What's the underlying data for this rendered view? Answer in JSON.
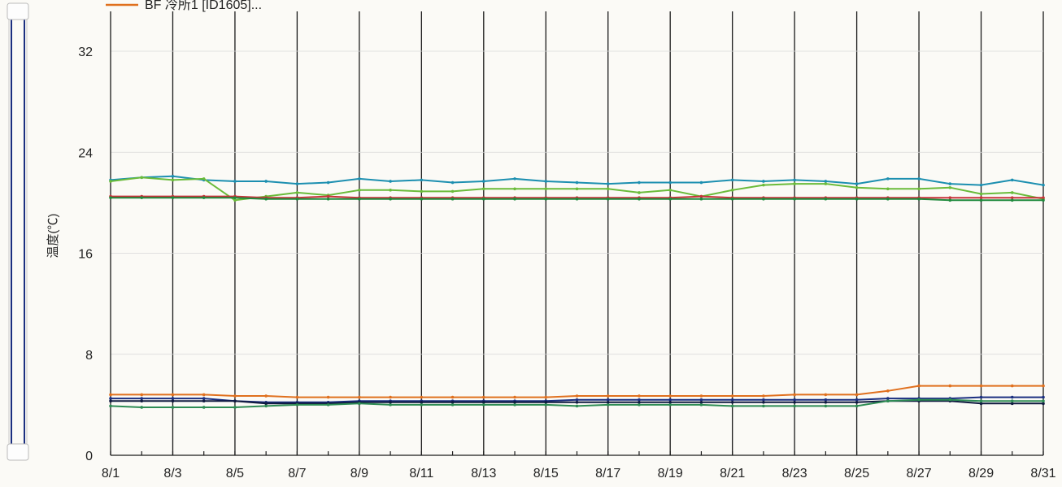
{
  "chart_data": {
    "type": "line",
    "title": "",
    "xlabel": "",
    "ylabel": "温度(℃)",
    "ylim": [
      0,
      32
    ],
    "yticks": [
      0,
      8,
      16,
      24,
      32
    ],
    "grid": "vertical",
    "legend_position": "top-left",
    "legend_visible_entries": [
      "BF 冷所1 [ID1605]..."
    ],
    "x": [
      "8/1",
      "8/2",
      "8/3",
      "8/4",
      "8/5",
      "8/6",
      "8/7",
      "8/8",
      "8/9",
      "8/10",
      "8/11",
      "8/12",
      "8/13",
      "8/14",
      "8/15",
      "8/16",
      "8/17",
      "8/18",
      "8/19",
      "8/20",
      "8/21",
      "8/22",
      "8/23",
      "8/24",
      "8/25",
      "8/26",
      "8/27",
      "8/28",
      "8/29",
      "8/30",
      "8/31"
    ],
    "xtick_labels": [
      "8/1",
      "8/3",
      "8/5",
      "8/7",
      "8/9",
      "8/11",
      "8/13",
      "8/15",
      "8/17",
      "8/19",
      "8/21",
      "8/23",
      "8/25",
      "8/27",
      "8/29",
      "8/31"
    ],
    "series": [
      {
        "name": "BF 冷所1 [ID1605]...",
        "color": "#e0701e",
        "values": [
          4.8,
          4.8,
          4.8,
          4.8,
          4.7,
          4.7,
          4.6,
          4.6,
          4.6,
          4.6,
          4.6,
          4.6,
          4.6,
          4.6,
          4.6,
          4.7,
          4.7,
          4.7,
          4.7,
          4.7,
          4.7,
          4.7,
          4.8,
          4.8,
          4.8,
          5.1,
          5.5,
          5.5,
          5.5,
          5.5,
          5.5
        ]
      },
      {
        "color": "#1c8fb0",
        "values": [
          21.8,
          22.0,
          22.1,
          21.8,
          21.7,
          21.7,
          21.5,
          21.6,
          21.9,
          21.7,
          21.8,
          21.6,
          21.7,
          21.9,
          21.7,
          21.6,
          21.5,
          21.6,
          21.6,
          21.6,
          21.8,
          21.7,
          21.8,
          21.7,
          21.5,
          21.9,
          21.9,
          21.5,
          21.4,
          21.8,
          21.4
        ]
      },
      {
        "color": "#6abb3a",
        "values": [
          21.7,
          22.0,
          21.8,
          21.9,
          20.2,
          20.5,
          20.8,
          20.6,
          21.0,
          21.0,
          20.9,
          20.9,
          21.1,
          21.1,
          21.1,
          21.1,
          21.1,
          20.8,
          21.0,
          20.5,
          21.0,
          21.4,
          21.5,
          21.5,
          21.2,
          21.1,
          21.1,
          21.2,
          20.7,
          20.8,
          20.3
        ]
      },
      {
        "color": "#c8333a",
        "values": [
          20.5,
          20.5,
          20.5,
          20.5,
          20.5,
          20.4,
          20.4,
          20.5,
          20.4,
          20.4,
          20.4,
          20.4,
          20.4,
          20.4,
          20.4,
          20.4,
          20.4,
          20.4,
          20.4,
          20.5,
          20.4,
          20.4,
          20.4,
          20.4,
          20.4,
          20.4,
          20.4,
          20.4,
          20.4,
          20.4,
          20.4
        ]
      },
      {
        "color": "#1e8a3c",
        "values": [
          20.4,
          20.4,
          20.4,
          20.4,
          20.4,
          20.3,
          20.3,
          20.3,
          20.3,
          20.3,
          20.3,
          20.3,
          20.3,
          20.3,
          20.3,
          20.3,
          20.3,
          20.3,
          20.3,
          20.3,
          20.3,
          20.3,
          20.3,
          20.3,
          20.3,
          20.3,
          20.3,
          20.2,
          20.2,
          20.2,
          20.2
        ]
      },
      {
        "color": "#1b2f80",
        "values": [
          4.5,
          4.5,
          4.5,
          4.5,
          4.3,
          4.2,
          4.2,
          4.2,
          4.3,
          4.3,
          4.3,
          4.3,
          4.3,
          4.3,
          4.3,
          4.4,
          4.4,
          4.4,
          4.4,
          4.4,
          4.4,
          4.4,
          4.4,
          4.4,
          4.4,
          4.5,
          4.5,
          4.5,
          4.6,
          4.6,
          4.6
        ]
      },
      {
        "color": "#101a40",
        "values": [
          4.3,
          4.3,
          4.3,
          4.3,
          4.3,
          4.1,
          4.1,
          4.1,
          4.2,
          4.2,
          4.2,
          4.2,
          4.2,
          4.2,
          4.2,
          4.2,
          4.2,
          4.2,
          4.2,
          4.2,
          4.2,
          4.2,
          4.2,
          4.2,
          4.2,
          4.3,
          4.3,
          4.3,
          4.1,
          4.1,
          4.1
        ]
      },
      {
        "color": "#2e8c54",
        "values": [
          3.9,
          3.8,
          3.8,
          3.8,
          3.8,
          3.9,
          4.0,
          4.0,
          4.1,
          4.0,
          4.0,
          4.0,
          4.0,
          4.0,
          4.0,
          3.9,
          4.0,
          4.0,
          4.0,
          4.0,
          3.9,
          3.9,
          3.9,
          3.9,
          3.9,
          4.3,
          4.4,
          4.4,
          4.3,
          4.3,
          4.3
        ]
      }
    ]
  }
}
